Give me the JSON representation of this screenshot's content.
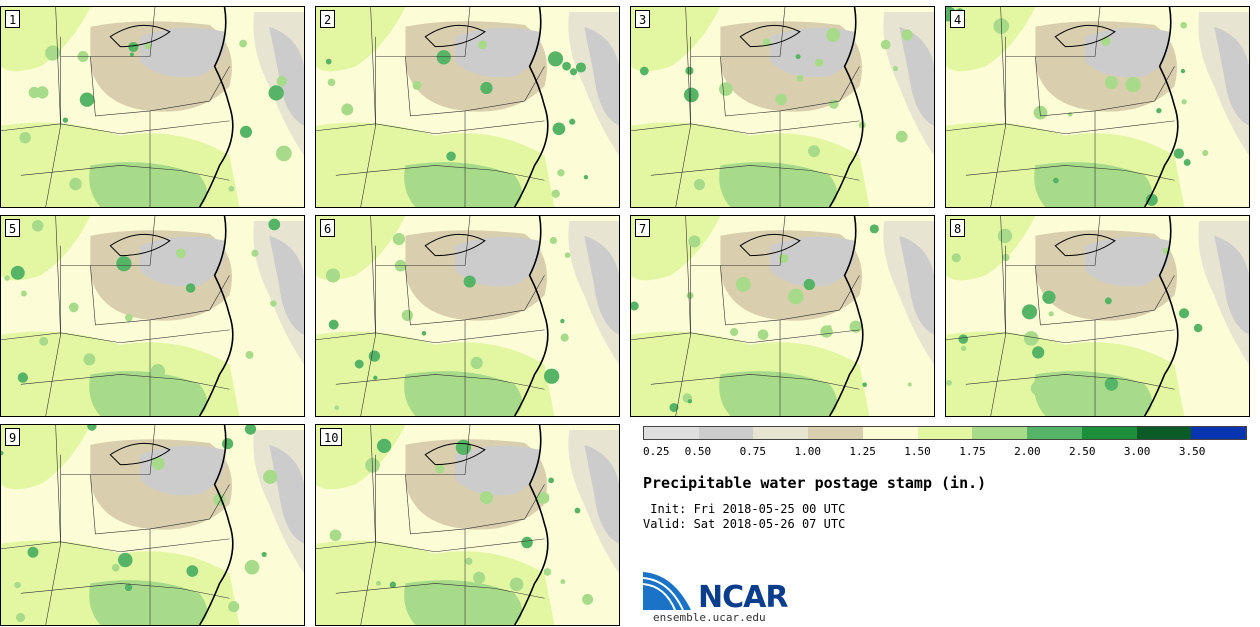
{
  "stamps": [
    "1",
    "2",
    "3",
    "4",
    "5",
    "6",
    "7",
    "8",
    "9",
    "10"
  ],
  "colorbar": {
    "colors": [
      "#dedede",
      "#cccccc",
      "#e7e4d2",
      "#d9cfae",
      "#fcfcd6",
      "#e3f7a3",
      "#a7db89",
      "#56b466",
      "#1c8f3a",
      "#0a5b25",
      "#0a35b0"
    ],
    "labels": [
      "0.25",
      "0.50",
      "0.75",
      "1.00",
      "1.25",
      "1.50",
      "1.75",
      "2.00",
      "2.50",
      "3.00",
      "3.50"
    ]
  },
  "title": "Precipitable water postage stamp (in.)",
  "init_line": " Init: Fri 2018-05-25 00 UTC",
  "valid_line": "Valid: Sat 2018-05-26 07 UTC",
  "logo": {
    "text": "NCAR",
    "url": "ensemble.ucar.edu"
  }
}
